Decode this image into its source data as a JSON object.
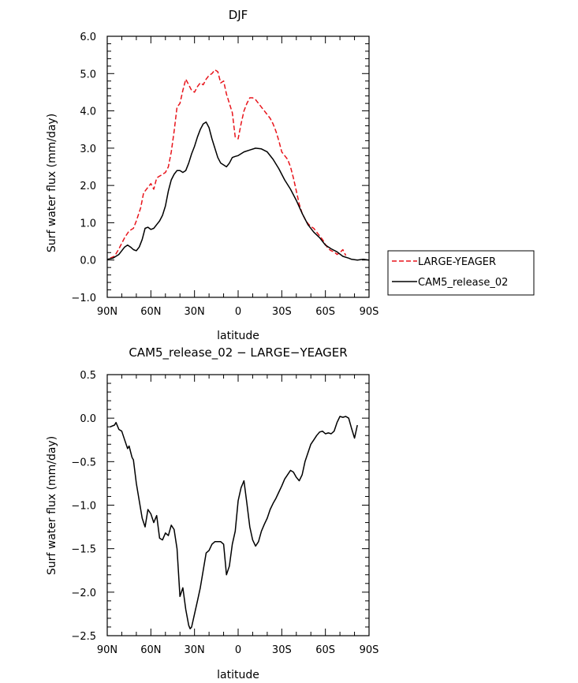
{
  "chart_data": [
    {
      "type": "line",
      "title": "DJF",
      "xlabel": "latitude",
      "ylabel": "Surf water flux (mm/day)",
      "xlim": [
        90,
        -90
      ],
      "ylim": [
        -1.0,
        6.0
      ],
      "x_ticks": [
        {
          "value": 90,
          "label": "90N"
        },
        {
          "value": 60,
          "label": "60N"
        },
        {
          "value": 30,
          "label": "30N"
        },
        {
          "value": 0,
          "label": "0"
        },
        {
          "value": -30,
          "label": "30S"
        },
        {
          "value": -60,
          "label": "60S"
        },
        {
          "value": -90,
          "label": "90S"
        }
      ],
      "y_ticks": [
        {
          "value": 6.0,
          "label": "6.0"
        },
        {
          "value": 5.0,
          "label": "5.0"
        },
        {
          "value": 4.0,
          "label": "4.0"
        },
        {
          "value": 3.0,
          "label": "3.0"
        },
        {
          "value": 2.0,
          "label": "2.0"
        },
        {
          "value": 1.0,
          "label": "1.0"
        },
        {
          "value": 0.0,
          "label": "0.0"
        },
        {
          "value": -1.0,
          "label": "−1.0"
        }
      ],
      "legend": {
        "position": "right",
        "entries": [
          "LARGE-YEAGER",
          "CAM5_release_02"
        ]
      },
      "series": [
        {
          "name": "LARGE-YEAGER",
          "color": "#e8141b",
          "dash": "dashed",
          "points": [
            [
              88,
              0.05
            ],
            [
              85,
              0.1
            ],
            [
              82,
              0.3
            ],
            [
              78,
              0.6
            ],
            [
              75,
              0.78
            ],
            [
              72,
              0.85
            ],
            [
              70,
              1.05
            ],
            [
              67,
              1.4
            ],
            [
              65,
              1.8
            ],
            [
              62,
              1.95
            ],
            [
              60,
              2.05
            ],
            [
              58,
              1.9
            ],
            [
              56,
              2.2
            ],
            [
              54,
              2.25
            ],
            [
              52,
              2.3
            ],
            [
              50,
              2.35
            ],
            [
              48,
              2.5
            ],
            [
              46,
              2.9
            ],
            [
              44,
              3.45
            ],
            [
              42,
              4.1
            ],
            [
              40,
              4.2
            ],
            [
              38,
              4.55
            ],
            [
              36,
              4.85
            ],
            [
              34,
              4.7
            ],
            [
              32,
              4.55
            ],
            [
              30,
              4.5
            ],
            [
              28,
              4.65
            ],
            [
              26,
              4.75
            ],
            [
              24,
              4.7
            ],
            [
              22,
              4.85
            ],
            [
              20,
              4.95
            ],
            [
              18,
              5.0
            ],
            [
              16,
              5.1
            ],
            [
              14,
              5.05
            ],
            [
              12,
              4.75
            ],
            [
              10,
              4.8
            ],
            [
              8,
              4.45
            ],
            [
              6,
              4.2
            ],
            [
              4,
              3.95
            ],
            [
              2,
              3.3
            ],
            [
              0,
              3.25
            ],
            [
              -2,
              3.65
            ],
            [
              -4,
              4.0
            ],
            [
              -6,
              4.2
            ],
            [
              -8,
              4.35
            ],
            [
              -10,
              4.35
            ],
            [
              -12,
              4.3
            ],
            [
              -14,
              4.2
            ],
            [
              -16,
              4.1
            ],
            [
              -18,
              4.0
            ],
            [
              -20,
              3.9
            ],
            [
              -22,
              3.8
            ],
            [
              -24,
              3.65
            ],
            [
              -26,
              3.45
            ],
            [
              -28,
              3.2
            ],
            [
              -30,
              2.9
            ],
            [
              -32,
              2.8
            ],
            [
              -34,
              2.7
            ],
            [
              -36,
              2.5
            ],
            [
              -38,
              2.2
            ],
            [
              -40,
              1.85
            ],
            [
              -42,
              1.5
            ],
            [
              -44,
              1.25
            ],
            [
              -46,
              1.1
            ],
            [
              -48,
              0.98
            ],
            [
              -50,
              0.9
            ],
            [
              -52,
              0.85
            ],
            [
              -54,
              0.75
            ],
            [
              -56,
              0.65
            ],
            [
              -58,
              0.55
            ],
            [
              -60,
              0.42
            ],
            [
              -62,
              0.3
            ],
            [
              -64,
              0.25
            ],
            [
              -66,
              0.22
            ],
            [
              -68,
              0.15
            ],
            [
              -70,
              0.2
            ],
            [
              -72,
              0.28
            ],
            [
              -74,
              0.12
            ]
          ]
        },
        {
          "name": "CAM5_release_02",
          "color": "#000000",
          "dash": "solid",
          "points": [
            [
              90,
              0.02
            ],
            [
              86,
              0.05
            ],
            [
              82,
              0.15
            ],
            [
              78,
              0.35
            ],
            [
              76,
              0.4
            ],
            [
              74,
              0.35
            ],
            [
              72,
              0.28
            ],
            [
              70,
              0.25
            ],
            [
              68,
              0.35
            ],
            [
              66,
              0.55
            ],
            [
              64,
              0.85
            ],
            [
              62,
              0.88
            ],
            [
              60,
              0.82
            ],
            [
              58,
              0.85
            ],
            [
              56,
              0.95
            ],
            [
              54,
              1.05
            ],
            [
              52,
              1.2
            ],
            [
              50,
              1.45
            ],
            [
              48,
              1.85
            ],
            [
              46,
              2.15
            ],
            [
              44,
              2.3
            ],
            [
              42,
              2.4
            ],
            [
              40,
              2.4
            ],
            [
              38,
              2.35
            ],
            [
              36,
              2.4
            ],
            [
              34,
              2.6
            ],
            [
              32,
              2.85
            ],
            [
              30,
              3.05
            ],
            [
              28,
              3.3
            ],
            [
              26,
              3.5
            ],
            [
              24,
              3.65
            ],
            [
              22,
              3.7
            ],
            [
              20,
              3.55
            ],
            [
              18,
              3.25
            ],
            [
              16,
              3.0
            ],
            [
              14,
              2.75
            ],
            [
              12,
              2.6
            ],
            [
              10,
              2.55
            ],
            [
              8,
              2.5
            ],
            [
              6,
              2.6
            ],
            [
              4,
              2.75
            ],
            [
              2,
              2.78
            ],
            [
              0,
              2.8
            ],
            [
              -4,
              2.9
            ],
            [
              -8,
              2.95
            ],
            [
              -12,
              3.0
            ],
            [
              -16,
              2.98
            ],
            [
              -20,
              2.9
            ],
            [
              -24,
              2.7
            ],
            [
              -28,
              2.45
            ],
            [
              -32,
              2.15
            ],
            [
              -36,
              1.9
            ],
            [
              -40,
              1.6
            ],
            [
              -44,
              1.25
            ],
            [
              -48,
              0.95
            ],
            [
              -52,
              0.75
            ],
            [
              -56,
              0.6
            ],
            [
              -60,
              0.4
            ],
            [
              -64,
              0.3
            ],
            [
              -68,
              0.22
            ],
            [
              -72,
              0.1
            ],
            [
              -76,
              0.05
            ],
            [
              -78,
              0.02
            ],
            [
              -82,
              0.0
            ],
            [
              -86,
              0.02
            ],
            [
              -90,
              0.0
            ]
          ]
        }
      ]
    },
    {
      "type": "line",
      "title": "CAM5_release_02 − LARGE−YEAGER",
      "xlabel": "latitude",
      "ylabel": "Surf water flux (mm/day)",
      "xlim": [
        90,
        -90
      ],
      "ylim": [
        -2.5,
        0.5
      ],
      "x_ticks": [
        {
          "value": 90,
          "label": "90N"
        },
        {
          "value": 60,
          "label": "60N"
        },
        {
          "value": 30,
          "label": "30N"
        },
        {
          "value": 0,
          "label": "0"
        },
        {
          "value": -30,
          "label": "30S"
        },
        {
          "value": -60,
          "label": "60S"
        },
        {
          "value": -90,
          "label": "90S"
        }
      ],
      "y_ticks": [
        {
          "value": 0.5,
          "label": "0.5"
        },
        {
          "value": 0.0,
          "label": "0.0"
        },
        {
          "value": -0.5,
          "label": "−0.5"
        },
        {
          "value": -1.0,
          "label": "−1.0"
        },
        {
          "value": -1.5,
          "label": "−1.5"
        },
        {
          "value": -2.0,
          "label": "−2.0"
        },
        {
          "value": -2.5,
          "label": "−2.5"
        }
      ],
      "series": [
        {
          "name": "CAM5_release_02 − LARGE−YEAGER",
          "color": "#000000",
          "dash": "solid",
          "points": [
            [
              88,
              -0.1
            ],
            [
              85,
              -0.08
            ],
            [
              84,
              -0.05
            ],
            [
              82,
              -0.13
            ],
            [
              80,
              -0.15
            ],
            [
              78,
              -0.25
            ],
            [
              76,
              -0.35
            ],
            [
              75,
              -0.32
            ],
            [
              73,
              -0.45
            ],
            [
              72,
              -0.48
            ],
            [
              70,
              -0.75
            ],
            [
              68,
              -0.95
            ],
            [
              66,
              -1.15
            ],
            [
              64,
              -1.25
            ],
            [
              62,
              -1.05
            ],
            [
              60,
              -1.1
            ],
            [
              58,
              -1.2
            ],
            [
              56,
              -1.12
            ],
            [
              54,
              -1.38
            ],
            [
              52,
              -1.4
            ],
            [
              50,
              -1.32
            ],
            [
              48,
              -1.35
            ],
            [
              46,
              -1.23
            ],
            [
              44,
              -1.28
            ],
            [
              42,
              -1.5
            ],
            [
              40,
              -2.05
            ],
            [
              38,
              -1.95
            ],
            [
              36,
              -2.2
            ],
            [
              34,
              -2.38
            ],
            [
              33,
              -2.42
            ],
            [
              32,
              -2.4
            ],
            [
              30,
              -2.25
            ],
            [
              28,
              -2.1
            ],
            [
              26,
              -1.95
            ],
            [
              24,
              -1.75
            ],
            [
              22,
              -1.55
            ],
            [
              20,
              -1.52
            ],
            [
              18,
              -1.45
            ],
            [
              16,
              -1.42
            ],
            [
              14,
              -1.42
            ],
            [
              12,
              -1.42
            ],
            [
              10,
              -1.45
            ],
            [
              8,
              -1.8
            ],
            [
              6,
              -1.7
            ],
            [
              4,
              -1.45
            ],
            [
              2,
              -1.3
            ],
            [
              0,
              -0.95
            ],
            [
              -2,
              -0.8
            ],
            [
              -4,
              -0.72
            ],
            [
              -6,
              -0.98
            ],
            [
              -8,
              -1.25
            ],
            [
              -10,
              -1.4
            ],
            [
              -12,
              -1.47
            ],
            [
              -14,
              -1.42
            ],
            [
              -16,
              -1.3
            ],
            [
              -18,
              -1.22
            ],
            [
              -20,
              -1.15
            ],
            [
              -22,
              -1.05
            ],
            [
              -24,
              -0.98
            ],
            [
              -26,
              -0.92
            ],
            [
              -28,
              -0.85
            ],
            [
              -30,
              -0.78
            ],
            [
              -32,
              -0.7
            ],
            [
              -34,
              -0.65
            ],
            [
              -36,
              -0.6
            ],
            [
              -38,
              -0.62
            ],
            [
              -40,
              -0.68
            ],
            [
              -42,
              -0.72
            ],
            [
              -44,
              -0.65
            ],
            [
              -46,
              -0.5
            ],
            [
              -48,
              -0.4
            ],
            [
              -50,
              -0.3
            ],
            [
              -52,
              -0.25
            ],
            [
              -54,
              -0.2
            ],
            [
              -56,
              -0.16
            ],
            [
              -58,
              -0.15
            ],
            [
              -60,
              -0.18
            ],
            [
              -62,
              -0.17
            ],
            [
              -64,
              -0.18
            ],
            [
              -66,
              -0.15
            ],
            [
              -68,
              -0.05
            ],
            [
              -70,
              0.02
            ],
            [
              -72,
              0.01
            ],
            [
              -74,
              0.02
            ],
            [
              -76,
              0.0
            ],
            [
              -78,
              -0.12
            ],
            [
              -80,
              -0.23
            ],
            [
              -82,
              -0.08
            ]
          ]
        }
      ]
    }
  ]
}
